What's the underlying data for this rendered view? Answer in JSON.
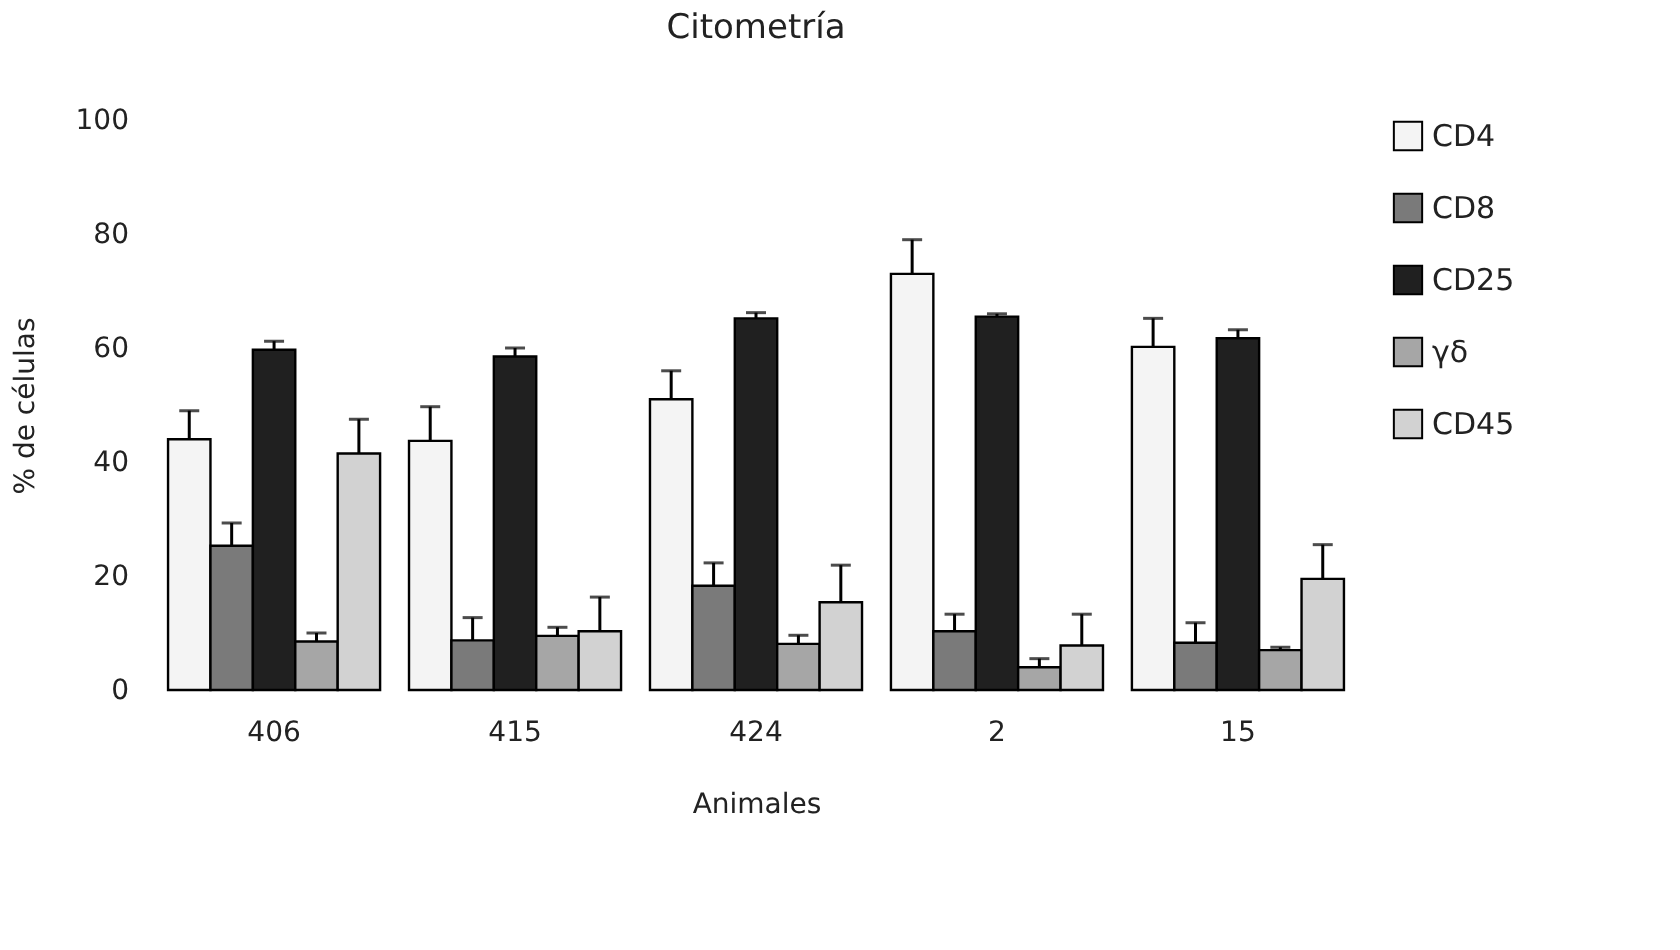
{
  "chart_data": {
    "type": "bar",
    "title": "Citometría",
    "xlabel": "Animales",
    "ylabel": "% de células",
    "categories": [
      "406",
      "415",
      "424",
      "2",
      "15"
    ],
    "series": [
      {
        "name": "CD4",
        "color": "#f4f4f4",
        "values": [
          44,
          43.7,
          51,
          73,
          60.2
        ],
        "errors": [
          5,
          6,
          5,
          6,
          5
        ]
      },
      {
        "name": "CD8",
        "color": "#7a7a7a",
        "values": [
          25.3,
          8.7,
          18.3,
          10.3,
          8.3
        ],
        "errors": [
          4,
          4,
          4,
          3,
          3.5
        ]
      },
      {
        "name": "CD25",
        "color": "#202020",
        "values": [
          59.7,
          58.5,
          65.2,
          65.5,
          61.7
        ],
        "errors": [
          1.5,
          1.5,
          1,
          0.5,
          1.5
        ]
      },
      {
        "name": "γδ",
        "color": "#a6a6a6",
        "values": [
          8.5,
          9.5,
          8.1,
          4,
          7
        ],
        "errors": [
          1.5,
          1.5,
          1.5,
          1.5,
          0.5
        ]
      },
      {
        "name": "CD45",
        "color": "#d2d2d2",
        "values": [
          41.5,
          10.3,
          15.4,
          7.8,
          19.5
        ],
        "errors": [
          6,
          6,
          6.5,
          5.5,
          6
        ]
      }
    ],
    "ylim": [
      0,
      100
    ],
    "yticks": [
      0,
      20,
      40,
      60,
      80,
      100
    ],
    "legend": "right",
    "grid": false
  }
}
